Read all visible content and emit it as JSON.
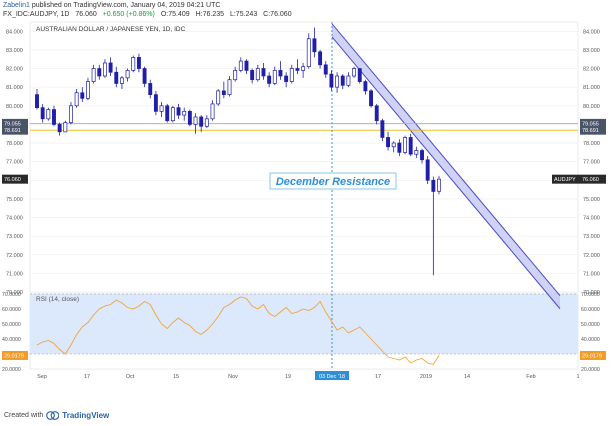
{
  "header": {
    "author": "Zabelin1",
    "published": "published on TradingView.com, January 04, 2019 04:21 UTC",
    "symbol": "FX_IDC:AUDJPY, 1D",
    "last": "76.060",
    "change": "+0.650 (+0.86%)",
    "open": "O:75.409",
    "high": "H:76.235",
    "low": "L:75.243",
    "close": "C:76.060"
  },
  "footer": {
    "created_with": "Created with",
    "brand": "TradingView"
  },
  "colors": {
    "bull_candle": "#ffffff",
    "bear_candle": "#1f1fa8",
    "candle_outline": "#1f1fa8",
    "channel_fill": "#c9cbf5",
    "channel_line": "#4a4ad0",
    "support_line": "#e8b900",
    "annotation_text": "#2d8fd6",
    "annotation_border": "#6cb8ea",
    "rsi_line": "#f2a33a",
    "rsi_band": "#dce8fb",
    "price_label_bg": "#2a2a2a",
    "rsi_label_bg": "#f29b26",
    "support_label_bg": "#4a5468",
    "date_label_bg": "#2d8fd6"
  },
  "chart_data": [
    {
      "type": "candlestick",
      "title": "AUSTRALIAN DOLLAR / JAPANESE YEN, 1D, IDC",
      "ylim": [
        70,
        84.5
      ],
      "y_ticks": [
        "84.000",
        "83.000",
        "82.000",
        "81.000",
        "80.000",
        "79.000",
        "78.000",
        "77.000",
        "76.000",
        "75.000",
        "74.000",
        "73.000",
        "72.000",
        "71.000",
        "70.000"
      ],
      "x_ticks": [
        "Sep",
        "17",
        "Oct",
        "15",
        "Nov",
        "19",
        "03 Dec '18",
        "17",
        "2019",
        "14",
        "Feb",
        "1"
      ],
      "candles": [
        {
          "o": 80.6,
          "h": 80.9,
          "l": 79.8,
          "c": 79.9
        },
        {
          "o": 79.9,
          "h": 80.1,
          "l": 79.1,
          "c": 79.3
        },
        {
          "o": 79.3,
          "h": 79.9,
          "l": 79.2,
          "c": 79.8
        },
        {
          "o": 79.8,
          "h": 80.0,
          "l": 78.9,
          "c": 79.0
        },
        {
          "o": 79.0,
          "h": 79.1,
          "l": 78.4,
          "c": 78.6
        },
        {
          "o": 78.6,
          "h": 79.2,
          "l": 78.6,
          "c": 79.1
        },
        {
          "o": 79.1,
          "h": 80.2,
          "l": 79.0,
          "c": 80.0
        },
        {
          "o": 80.0,
          "h": 80.9,
          "l": 79.9,
          "c": 80.7
        },
        {
          "o": 80.7,
          "h": 81.0,
          "l": 80.2,
          "c": 80.4
        },
        {
          "o": 80.4,
          "h": 81.5,
          "l": 80.3,
          "c": 81.3
        },
        {
          "o": 81.3,
          "h": 82.2,
          "l": 81.2,
          "c": 82.0
        },
        {
          "o": 82.0,
          "h": 82.2,
          "l": 81.4,
          "c": 81.6
        },
        {
          "o": 81.6,
          "h": 82.5,
          "l": 81.5,
          "c": 82.3
        },
        {
          "o": 82.3,
          "h": 82.6,
          "l": 81.6,
          "c": 81.8
        },
        {
          "o": 81.8,
          "h": 82.1,
          "l": 81.0,
          "c": 81.2
        },
        {
          "o": 81.2,
          "h": 81.6,
          "l": 80.9,
          "c": 81.5
        },
        {
          "o": 81.5,
          "h": 82.0,
          "l": 81.3,
          "c": 81.9
        },
        {
          "o": 81.9,
          "h": 82.7,
          "l": 81.8,
          "c": 82.6
        },
        {
          "o": 82.6,
          "h": 82.8,
          "l": 81.8,
          "c": 82.0
        },
        {
          "o": 82.0,
          "h": 82.1,
          "l": 81.0,
          "c": 81.2
        },
        {
          "o": 81.2,
          "h": 81.4,
          "l": 80.4,
          "c": 80.6
        },
        {
          "o": 80.6,
          "h": 80.8,
          "l": 79.5,
          "c": 79.7
        },
        {
          "o": 79.7,
          "h": 80.2,
          "l": 79.4,
          "c": 80.0
        },
        {
          "o": 80.0,
          "h": 80.1,
          "l": 79.1,
          "c": 79.2
        },
        {
          "o": 79.2,
          "h": 80.0,
          "l": 79.1,
          "c": 79.9
        },
        {
          "o": 79.9,
          "h": 80.1,
          "l": 79.3,
          "c": 79.5
        },
        {
          "o": 79.5,
          "h": 79.9,
          "l": 79.2,
          "c": 79.7
        },
        {
          "o": 79.7,
          "h": 79.8,
          "l": 78.9,
          "c": 79.0
        },
        {
          "o": 79.0,
          "h": 79.6,
          "l": 78.5,
          "c": 79.4
        },
        {
          "o": 79.4,
          "h": 79.5,
          "l": 78.6,
          "c": 78.9
        },
        {
          "o": 78.9,
          "h": 79.5,
          "l": 78.8,
          "c": 79.3
        },
        {
          "o": 79.3,
          "h": 80.3,
          "l": 79.2,
          "c": 80.1
        },
        {
          "o": 80.1,
          "h": 80.9,
          "l": 80.0,
          "c": 80.8
        },
        {
          "o": 80.8,
          "h": 81.3,
          "l": 80.4,
          "c": 80.6
        },
        {
          "o": 80.6,
          "h": 81.6,
          "l": 80.5,
          "c": 81.4
        },
        {
          "o": 81.4,
          "h": 82.1,
          "l": 81.3,
          "c": 81.9
        },
        {
          "o": 81.9,
          "h": 82.6,
          "l": 81.8,
          "c": 82.4
        },
        {
          "o": 82.4,
          "h": 82.5,
          "l": 81.7,
          "c": 81.9
        },
        {
          "o": 81.9,
          "h": 82.0,
          "l": 81.2,
          "c": 81.4
        },
        {
          "o": 81.4,
          "h": 82.2,
          "l": 81.3,
          "c": 82.0
        },
        {
          "o": 82.0,
          "h": 82.3,
          "l": 81.4,
          "c": 81.6
        },
        {
          "o": 81.6,
          "h": 81.8,
          "l": 81.0,
          "c": 81.2
        },
        {
          "o": 81.2,
          "h": 82.1,
          "l": 81.1,
          "c": 81.9
        },
        {
          "o": 81.9,
          "h": 82.4,
          "l": 81.4,
          "c": 81.6
        },
        {
          "o": 81.6,
          "h": 81.8,
          "l": 81.0,
          "c": 81.3
        },
        {
          "o": 81.3,
          "h": 82.2,
          "l": 81.2,
          "c": 82.0
        },
        {
          "o": 82.0,
          "h": 82.5,
          "l": 81.7,
          "c": 81.9
        },
        {
          "o": 81.9,
          "h": 82.3,
          "l": 81.5,
          "c": 82.1
        },
        {
          "o": 82.1,
          "h": 83.9,
          "l": 82.0,
          "c": 83.6
        },
        {
          "o": 83.6,
          "h": 84.2,
          "l": 82.6,
          "c": 82.9
        },
        {
          "o": 82.9,
          "h": 83.0,
          "l": 82.0,
          "c": 82.2
        },
        {
          "o": 82.2,
          "h": 82.4,
          "l": 81.5,
          "c": 81.7
        },
        {
          "o": 81.7,
          "h": 81.9,
          "l": 80.8,
          "c": 81.0
        },
        {
          "o": 81.0,
          "h": 81.8,
          "l": 80.7,
          "c": 81.6
        },
        {
          "o": 81.6,
          "h": 81.7,
          "l": 80.9,
          "c": 81.1
        },
        {
          "o": 81.1,
          "h": 81.8,
          "l": 81.0,
          "c": 81.6
        },
        {
          "o": 81.6,
          "h": 82.1,
          "l": 81.5,
          "c": 82.0
        },
        {
          "o": 82.0,
          "h": 82.0,
          "l": 81.2,
          "c": 81.3
        },
        {
          "o": 81.3,
          "h": 81.4,
          "l": 80.6,
          "c": 80.8
        },
        {
          "o": 80.8,
          "h": 80.9,
          "l": 79.9,
          "c": 80.0
        },
        {
          "o": 80.0,
          "h": 80.1,
          "l": 79.0,
          "c": 79.2
        },
        {
          "o": 79.2,
          "h": 79.3,
          "l": 78.1,
          "c": 78.3
        },
        {
          "o": 78.3,
          "h": 78.6,
          "l": 77.6,
          "c": 77.8
        },
        {
          "o": 77.8,
          "h": 78.1,
          "l": 77.5,
          "c": 78.0
        },
        {
          "o": 78.0,
          "h": 78.2,
          "l": 77.3,
          "c": 77.5
        },
        {
          "o": 77.5,
          "h": 78.4,
          "l": 77.4,
          "c": 78.3
        },
        {
          "o": 78.3,
          "h": 78.5,
          "l": 77.3,
          "c": 77.4
        },
        {
          "o": 77.4,
          "h": 77.8,
          "l": 77.2,
          "c": 77.6
        },
        {
          "o": 77.6,
          "h": 77.7,
          "l": 76.9,
          "c": 77.1
        },
        {
          "o": 77.1,
          "h": 77.3,
          "l": 75.8,
          "c": 76.0
        },
        {
          "o": 76.0,
          "h": 76.2,
          "l": 70.9,
          "c": 75.4
        },
        {
          "o": 75.409,
          "h": 76.235,
          "l": 75.243,
          "c": 76.06
        }
      ],
      "support_levels": [
        79.055,
        78.691
      ],
      "support_labels": [
        "79.055",
        "78.691"
      ],
      "channel": {
        "upper_start": 84.4,
        "upper_end": 69.8,
        "lower_start": 83.7,
        "lower_end": 69.1
      },
      "last_price_label": "76.060",
      "symbol_label": "AUDJPY",
      "annotation": "December Resistance",
      "marker_date_label": "03 Dec '18"
    },
    {
      "type": "line",
      "title": "RSI (14, close)",
      "ylim": [
        20,
        70
      ],
      "y_ticks": [
        "70.0000",
        "60.0000",
        "50.0000",
        "40.0000",
        "30.0000",
        "20.0000"
      ],
      "band": [
        30,
        70
      ],
      "last_value_label": "29.0179",
      "series": [
        {
          "values": [
            36,
            38,
            39,
            37,
            33,
            30,
            36,
            43,
            48,
            51,
            56,
            60,
            62,
            63,
            66,
            64,
            61,
            60,
            62,
            65,
            63,
            56,
            50,
            47,
            51,
            54,
            51,
            49,
            45,
            43,
            46,
            50,
            55,
            61,
            63,
            66,
            68,
            67,
            62,
            60,
            63,
            57,
            55,
            58,
            61,
            57,
            58,
            60,
            59,
            61,
            65,
            58,
            52,
            46,
            48,
            44,
            46,
            48,
            44,
            40,
            36,
            32,
            28,
            27,
            26,
            28,
            24,
            26,
            27,
            24,
            23,
            29
          ]
        }
      ]
    }
  ]
}
